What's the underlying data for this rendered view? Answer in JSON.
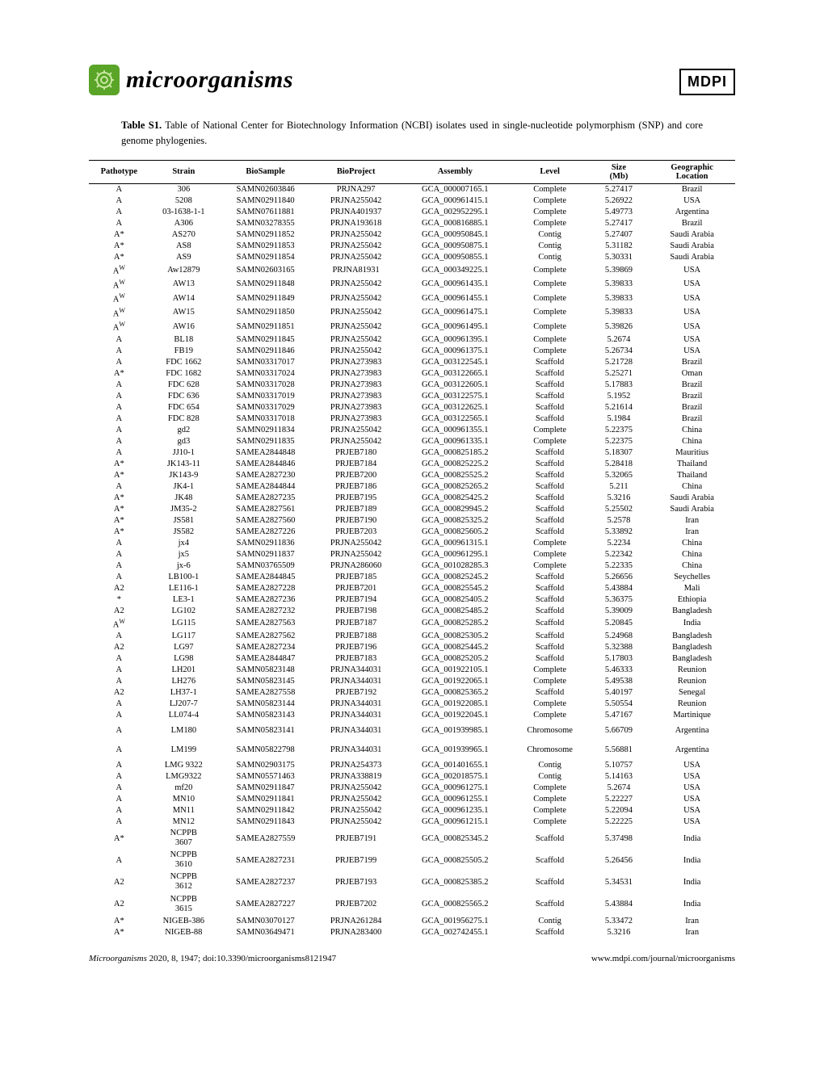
{
  "header": {
    "journal_name": "microorganisms",
    "publisher_logo_text": "MDPI"
  },
  "caption": {
    "label": "Table S1.",
    "text": " Table of National Center for Biotechnology Information (NCBI) isolates used in single-nucleotide polymorphism (SNP) and core genome phylogenies."
  },
  "table": {
    "columns": [
      {
        "key": "pathotype",
        "label": "Pathotype",
        "sub": ""
      },
      {
        "key": "strain",
        "label": "Strain",
        "sub": ""
      },
      {
        "key": "biosample",
        "label": "BioSample",
        "sub": ""
      },
      {
        "key": "bioproject",
        "label": "BioProject",
        "sub": ""
      },
      {
        "key": "assembly",
        "label": "Assembly",
        "sub": ""
      },
      {
        "key": "level",
        "label": "Level",
        "sub": ""
      },
      {
        "key": "size",
        "label": "Size",
        "sub": "(Mb)"
      },
      {
        "key": "location",
        "label": "Geographic",
        "sub": "Location"
      }
    ],
    "rows": [
      [
        "A",
        "306",
        "SAMN02603846",
        "PRJNA297",
        "GCA_000007165.1",
        "Complete",
        "5.27417",
        "Brazil"
      ],
      [
        "A",
        "5208",
        "SAMN02911840",
        "PRJNA255042",
        "GCA_000961415.1",
        "Complete",
        "5.26922",
        "USA"
      ],
      [
        "A",
        "03-1638-1-1",
        "SAMN07611881",
        "PRJNA401937",
        "GCA_002952295.1",
        "Complete",
        "5.49773",
        "Argentina"
      ],
      [
        "A",
        "A306",
        "SAMN03278355",
        "PRJNA193618",
        "GCA_000816885.1",
        "Complete",
        "5.27417",
        "Brazil"
      ],
      [
        "A*",
        "AS270",
        "SAMN02911852",
        "PRJNA255042",
        "GCA_000950845.1",
        "Contig",
        "5.27407",
        "Saudi Arabia"
      ],
      [
        "A*",
        "AS8",
        "SAMN02911853",
        "PRJNA255042",
        "GCA_000950875.1",
        "Contig",
        "5.31182",
        "Saudi Arabia"
      ],
      [
        "A*",
        "AS9",
        "SAMN02911854",
        "PRJNA255042",
        "GCA_000950855.1",
        "Contig",
        "5.30331",
        "Saudi Arabia"
      ],
      [
        "A<sup>W</sup>",
        "Aw12879",
        "SAMN02603165",
        "PRJNA81931",
        "GCA_000349225.1",
        "Complete",
        "5.39869",
        "USA"
      ],
      [
        "A<sup>W</sup>",
        "AW13",
        "SAMN02911848",
        "PRJNA255042",
        "GCA_000961435.1",
        "Complete",
        "5.39833",
        "USA"
      ],
      [
        "A<sup>W</sup>",
        "AW14",
        "SAMN02911849",
        "PRJNA255042",
        "GCA_000961455.1",
        "Complete",
        "5.39833",
        "USA"
      ],
      [
        "A<sup>W</sup>",
        "AW15",
        "SAMN02911850",
        "PRJNA255042",
        "GCA_000961475.1",
        "Complete",
        "5.39833",
        "USA"
      ],
      [
        "A<sup>W</sup>",
        "AW16",
        "SAMN02911851",
        "PRJNA255042",
        "GCA_000961495.1",
        "Complete",
        "5.39826",
        "USA"
      ],
      [
        "A",
        "BL18",
        "SAMN02911845",
        "PRJNA255042",
        "GCA_000961395.1",
        "Complete",
        "5.2674",
        "USA"
      ],
      [
        "A",
        "FB19",
        "SAMN02911846",
        "PRJNA255042",
        "GCA_000961375.1",
        "Complete",
        "5.26734",
        "USA"
      ],
      [
        "A",
        "FDC 1662",
        "SAMN03317017",
        "PRJNA273983",
        "GCA_003122545.1",
        "Scaffold",
        "5.21728",
        "Brazil"
      ],
      [
        "A*",
        "FDC 1682",
        "SAMN03317024",
        "PRJNA273983",
        "GCA_003122665.1",
        "Scaffold",
        "5.25271",
        "Oman"
      ],
      [
        "A",
        "FDC 628",
        "SAMN03317028",
        "PRJNA273983",
        "GCA_003122605.1",
        "Scaffold",
        "5.17883",
        "Brazil"
      ],
      [
        "A",
        "FDC 636",
        "SAMN03317019",
        "PRJNA273983",
        "GCA_003122575.1",
        "Scaffold",
        "5.1952",
        "Brazil"
      ],
      [
        "A",
        "FDC 654",
        "SAMN03317029",
        "PRJNA273983",
        "GCA_003122625.1",
        "Scaffold",
        "5.21614",
        "Brazil"
      ],
      [
        "A",
        "FDC 828",
        "SAMN03317018",
        "PRJNA273983",
        "GCA_003122565.1",
        "Scaffold",
        "5.1984",
        "Brazil"
      ],
      [
        "A",
        "gd2",
        "SAMN02911834",
        "PRJNA255042",
        "GCA_000961355.1",
        "Complete",
        "5.22375",
        "China"
      ],
      [
        "A",
        "gd3",
        "SAMN02911835",
        "PRJNA255042",
        "GCA_000961335.1",
        "Complete",
        "5.22375",
        "China"
      ],
      [
        "A",
        "JJ10-1",
        "SAMEA2844848",
        "PRJEB7180",
        "GCA_000825185.2",
        "Scaffold",
        "5.18307",
        "Mauritius"
      ],
      [
        "A*",
        "JK143-11",
        "SAMEA2844846",
        "PRJEB7184",
        "GCA_000825225.2",
        "Scaffold",
        "5.28418",
        "Thailand"
      ],
      [
        "A*",
        "JK143-9",
        "SAMEA2827230",
        "PRJEB7200",
        "GCA_000825525.2",
        "Scaffold",
        "5.32065",
        "Thailand"
      ],
      [
        "A",
        "JK4-1",
        "SAMEA2844844",
        "PRJEB7186",
        "GCA_000825265.2",
        "Scaffold",
        "5.211",
        "China"
      ],
      [
        "A*",
        "JK48",
        "SAMEA2827235",
        "PRJEB7195",
        "GCA_000825425.2",
        "Scaffold",
        "5.3216",
        "Saudi Arabia"
      ],
      [
        "A*",
        "JM35-2",
        "SAMEA2827561",
        "PRJEB7189",
        "GCA_000829945.2",
        "Scaffold",
        "5.25502",
        "Saudi Arabia"
      ],
      [
        "A*",
        "JS581",
        "SAMEA2827560",
        "PRJEB7190",
        "GCA_000825325.2",
        "Scaffold",
        "5.2578",
        "Iran"
      ],
      [
        "A*",
        "JS582",
        "SAMEA2827226",
        "PRJEB7203",
        "GCA_000825605.2",
        "Scaffold",
        "5.33892",
        "Iran"
      ],
      [
        "A",
        "jx4",
        "SAMN02911836",
        "PRJNA255042",
        "GCA_000961315.1",
        "Complete",
        "5.2234",
        "China"
      ],
      [
        "A",
        "jx5",
        "SAMN02911837",
        "PRJNA255042",
        "GCA_000961295.1",
        "Complete",
        "5.22342",
        "China"
      ],
      [
        "A",
        "jx-6",
        "SAMN03765509",
        "PRJNA286060",
        "GCA_001028285.3",
        "Complete",
        "5.22335",
        "China"
      ],
      [
        "A",
        "LB100-1",
        "SAMEA2844845",
        "PRJEB7185",
        "GCA_000825245.2",
        "Scaffold",
        "5.26656",
        "Seychelles"
      ],
      [
        "A2",
        "LE116-1",
        "SAMEA2827228",
        "PRJEB7201",
        "GCA_000825545.2",
        "Scaffold",
        "5.43884",
        "Mali"
      ],
      [
        "*",
        "LE3-1",
        "SAMEA2827236",
        "PRJEB7194",
        "GCA_000825405.2",
        "Scaffold",
        "5.36375",
        "Ethiopia"
      ],
      [
        "A2",
        "LG102",
        "SAMEA2827232",
        "PRJEB7198",
        "GCA_000825485.2",
        "Scaffold",
        "5.39009",
        "Bangladesh"
      ],
      [
        "A<sup>W</sup>",
        "LG115",
        "SAMEA2827563",
        "PRJEB7187",
        "GCA_000825285.2",
        "Scaffold",
        "5.20845",
        "India"
      ],
      [
        "A",
        "LG117",
        "SAMEA2827562",
        "PRJEB7188",
        "GCA_000825305.2",
        "Scaffold",
        "5.24968",
        "Bangladesh"
      ],
      [
        "A2",
        "LG97",
        "SAMEA2827234",
        "PRJEB7196",
        "GCA_000825445.2",
        "Scaffold",
        "5.32388",
        "Bangladesh"
      ],
      [
        "A",
        "LG98",
        "SAMEA2844847",
        "PRJEB7183",
        "GCA_000825205.2",
        "Scaffold",
        "5.17803",
        "Bangladesh"
      ],
      [
        "A",
        "LH201",
        "SAMN05823148",
        "PRJNA344031",
        "GCA_001922105.1",
        "Complete",
        "5.46333",
        "Reunion"
      ],
      [
        "A",
        "LH276",
        "SAMN05823145",
        "PRJNA344031",
        "GCA_001922065.1",
        "Complete",
        "5.49538",
        "Reunion"
      ],
      [
        "A2",
        "LH37-1",
        "SAMEA2827558",
        "PRJEB7192",
        "GCA_000825365.2",
        "Scaffold",
        "5.40197",
        "Senegal"
      ],
      [
        "A",
        "LJ207-7",
        "SAMN05823144",
        "PRJNA344031",
        "GCA_001922085.1",
        "Complete",
        "5.50554",
        "Reunion"
      ],
      [
        "A",
        "LL074-4",
        "SAMN05823143",
        "PRJNA344031",
        "GCA_001922045.1",
        "Complete",
        "5.47167",
        "Martinique"
      ],
      [
        "A",
        "LM180",
        "SAMN05823141",
        "PRJNA344031",
        "GCA_001939985.1",
        "Chromosome",
        "5.66709",
        "Argentina"
      ],
      [
        "A",
        "LM199",
        "SAMN05822798",
        "PRJNA344031",
        "GCA_001939965.1",
        "Chromosome",
        "5.56881",
        "Argentina"
      ],
      [
        "A",
        "LMG 9322",
        "SAMN02903175",
        "PRJNA254373",
        "GCA_001401655.1",
        "Contig",
        "5.10757",
        "USA"
      ],
      [
        "A",
        "LMG9322",
        "SAMN05571463",
        "PRJNA338819",
        "GCA_002018575.1",
        "Contig",
        "5.14163",
        "USA"
      ],
      [
        "A",
        "mf20",
        "SAMN02911847",
        "PRJNA255042",
        "GCA_000961275.1",
        "Complete",
        "5.2674",
        "USA"
      ],
      [
        "A",
        "MN10",
        "SAMN02911841",
        "PRJNA255042",
        "GCA_000961255.1",
        "Complete",
        "5.22227",
        "USA"
      ],
      [
        "A",
        "MN11",
        "SAMN02911842",
        "PRJNA255042",
        "GCA_000961235.1",
        "Complete",
        "5.22094",
        "USA"
      ],
      [
        "A",
        "MN12",
        "SAMN02911843",
        "PRJNA255042",
        "GCA_000961215.1",
        "Complete",
        "5.22225",
        "USA"
      ],
      [
        "A*",
        "NCPPB 3607",
        "SAMEA2827559",
        "PRJEB7191",
        "GCA_000825345.2",
        "Scaffold",
        "5.37498",
        "India"
      ],
      [
        "A",
        "NCPPB 3610",
        "SAMEA2827231",
        "PRJEB7199",
        "GCA_000825505.2",
        "Scaffold",
        "5.26456",
        "India"
      ],
      [
        "A2",
        "NCPPB 3612",
        "SAMEA2827237",
        "PRJEB7193",
        "GCA_000825385.2",
        "Scaffold",
        "5.34531",
        "India"
      ],
      [
        "A2",
        "NCPPB 3615",
        "SAMEA2827227",
        "PRJEB7202",
        "GCA_000825565.2",
        "Scaffold",
        "5.43884",
        "India"
      ],
      [
        "A*",
        "NIGEB-386",
        "SAMN03070127",
        "PRJNA261284",
        "GCA_001956275.1",
        "Contig",
        "5.33472",
        "Iran"
      ],
      [
        "A*",
        "NIGEB-88",
        "SAMN03649471",
        "PRJNA283400",
        "GCA_002742455.1",
        "Scaffold",
        "5.3216",
        "Iran"
      ]
    ],
    "multiline_strain_rows": [
      54,
      55,
      56,
      57
    ],
    "multiline_level_rows": [
      46,
      47
    ]
  },
  "footer": {
    "left_journal": "Microorganisms",
    "left_rest": " 2020, 8, 1947; doi:10.3390/microorganisms8121947",
    "right": "www.mdpi.com/journal/microorganisms"
  },
  "colors": {
    "brand_green": "#5aa428",
    "text": "#000000",
    "bg": "#ffffff"
  }
}
